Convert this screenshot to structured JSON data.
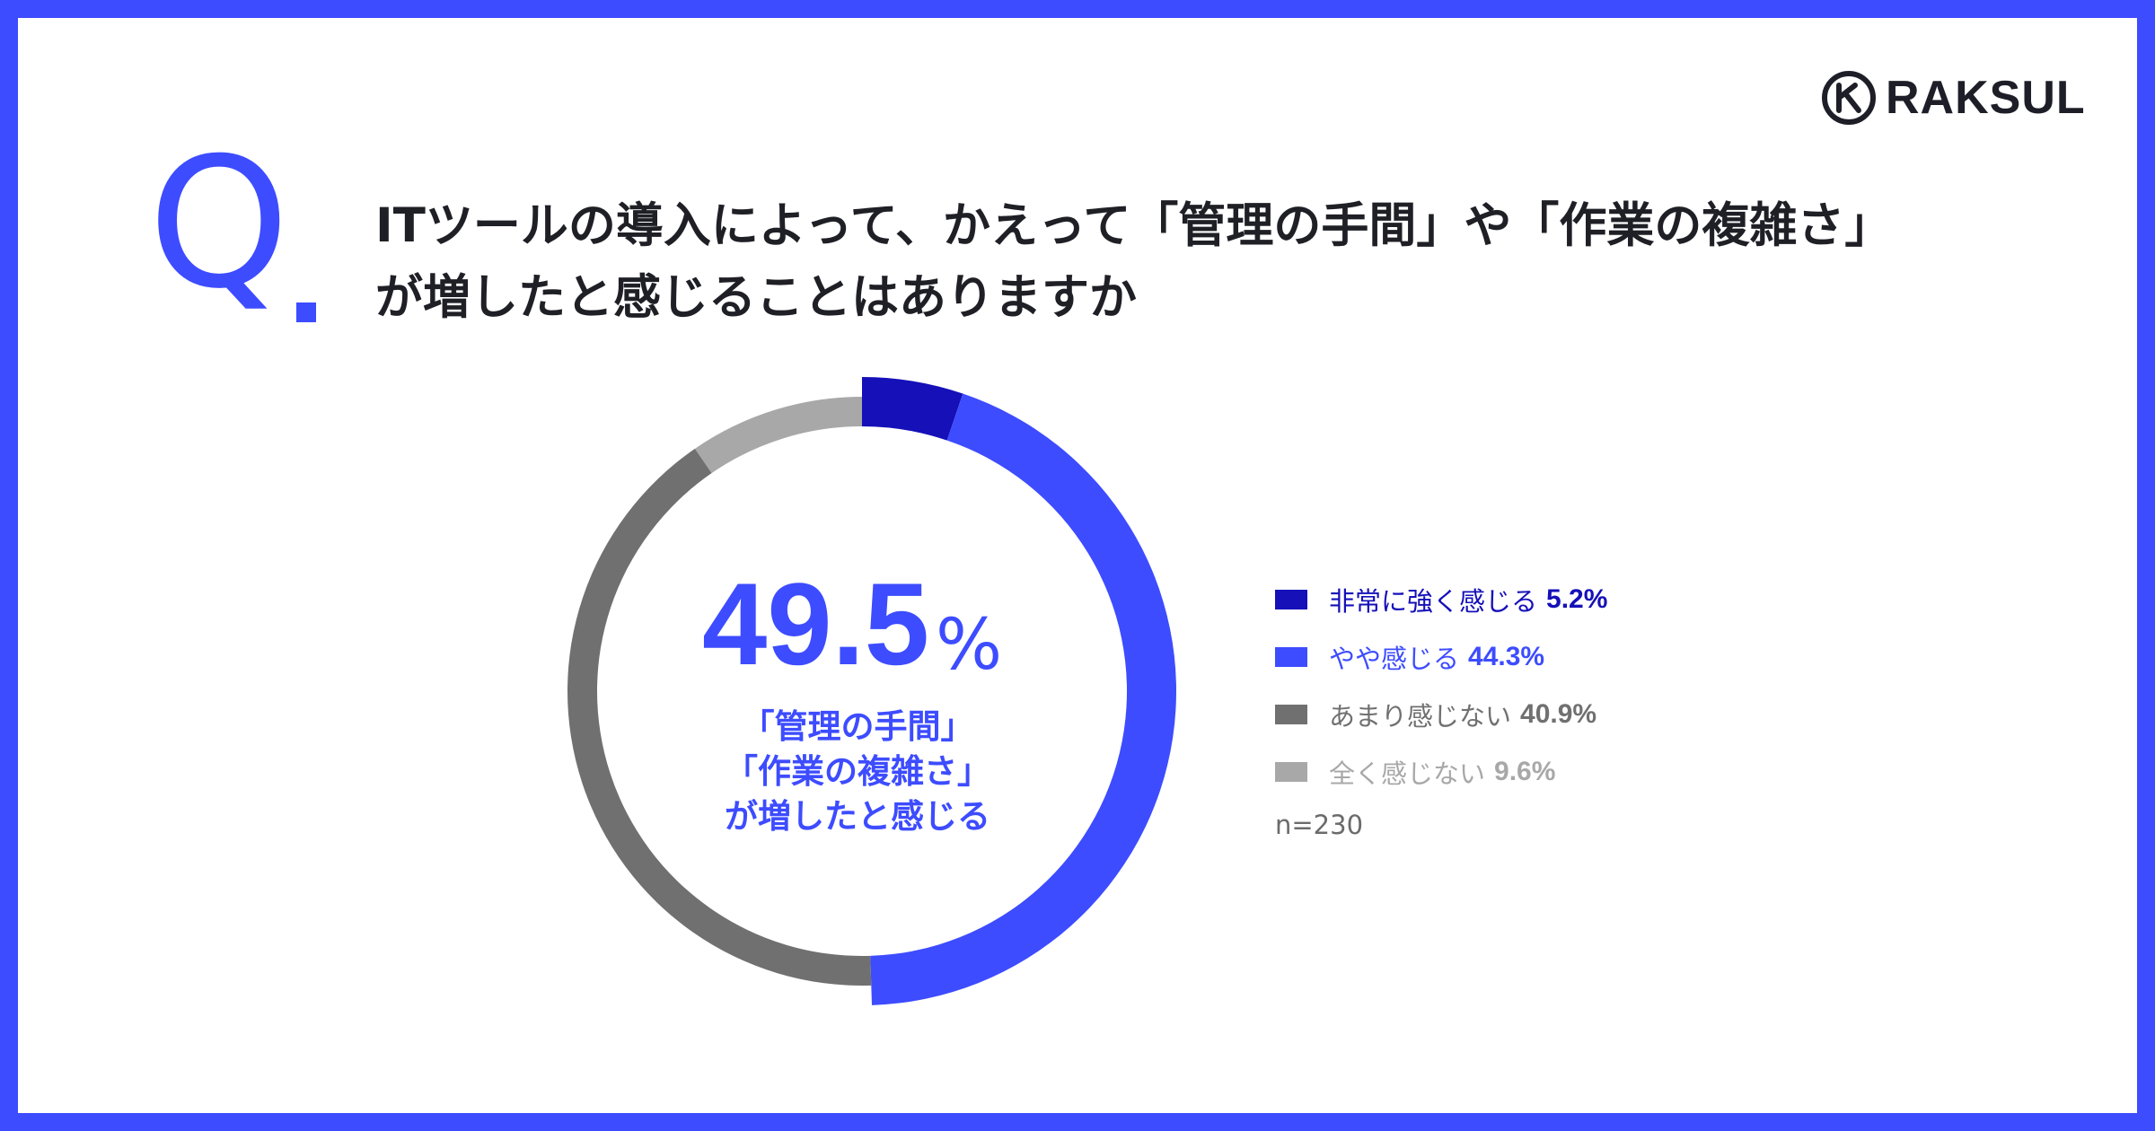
{
  "brand": {
    "name": "RAKSUL"
  },
  "question": {
    "prefix": "Q",
    "line1": "ITツールの導入によって、かえって「管理の手間」や「作業の複雑さ」",
    "line2": "が増したと感じることはありますか"
  },
  "center": {
    "value": "49.5",
    "unit": "%",
    "lines": [
      "「管理の手間」",
      "「作業の複雑さ」",
      "が増したと感じる"
    ]
  },
  "note": "n=230",
  "colors": {
    "accent": "#3d4cff",
    "dark_blue": "#1510b8",
    "dark_gray": "#707070",
    "light_gray": "#a8a8a8"
  },
  "chart_data": {
    "type": "pie",
    "title": "",
    "categories": [
      "非常に強く感じる",
      "やや感じる",
      "あまり感じない",
      "全く感じない"
    ],
    "values": [
      5.2,
      44.3,
      40.9,
      9.6
    ],
    "value_labels": [
      "5.2%",
      "44.3%",
      "40.9%",
      "9.6%"
    ],
    "colors": [
      "#1510b8",
      "#3d4cff",
      "#707070",
      "#a8a8a8"
    ],
    "legend_position": "right"
  }
}
